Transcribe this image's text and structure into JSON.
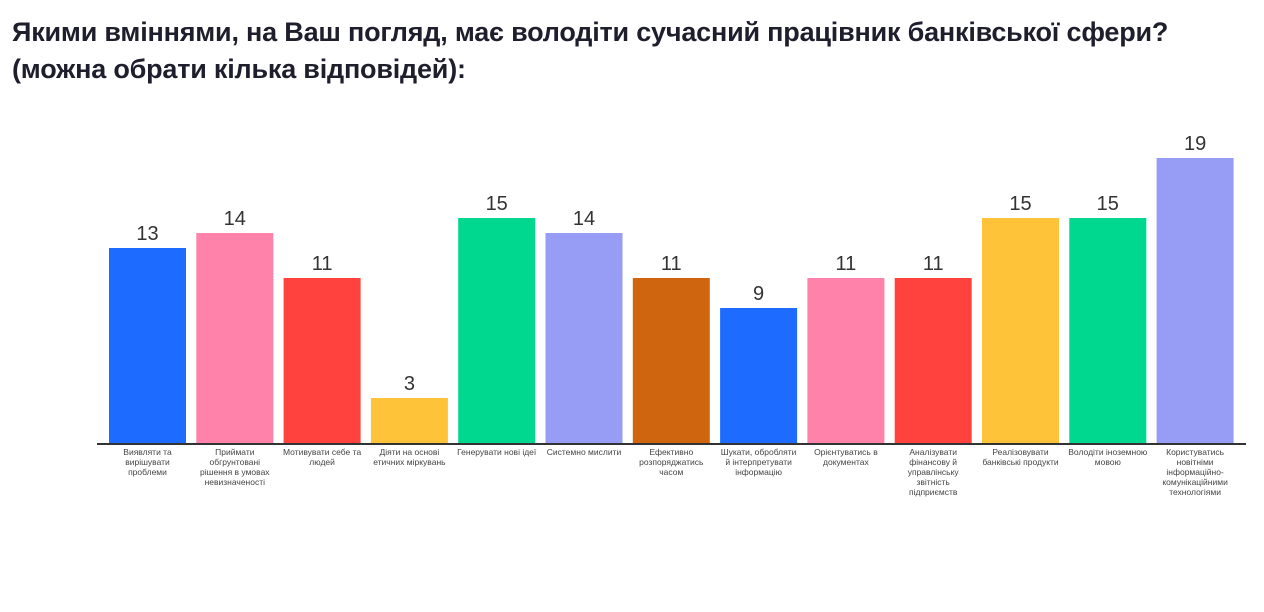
{
  "title": "Якими вміннями, на Ваш погляд, має володіти сучасний працівник банківської сфери? (можна обрати кілька відповідей):",
  "chart_data": {
    "type": "bar",
    "title": "Якими вміннями, на Ваш погляд, має володіти сучасний працівник банківської сфери? (можна обрати кілька відповідей):",
    "xlabel": "",
    "ylabel": "",
    "ylim": [
      0,
      19
    ],
    "grid": false,
    "legend": "none",
    "categories": [
      "Виявляти та вирішувати проблеми",
      "Приймати обгрунтовані рішення в умовах невизначеності",
      "Мотивувати себе та людей",
      "Діяти на основі етичних міркувань",
      "Генерувати нові ідеї",
      "Системно мислити",
      "Ефективно розпоряджатись часом",
      "Шукати, обробляти й інтерпретувати інформацію",
      "Орієнтуватись в документах",
      "Аналізувати фінансову й управлінську звітність підприємств",
      "Реалізовувати банківські продукти",
      "Володіти іноземною мовою",
      "Користуватись новітніми інформаційно-комунікаційними технологіями"
    ],
    "values": [
      13,
      14,
      11,
      3,
      15,
      14,
      11,
      9,
      11,
      11,
      15,
      15,
      19
    ],
    "colors": [
      "#1e6bff",
      "#ff82ab",
      "#ff423e",
      "#ffc33a",
      "#00d88f",
      "#979cf5",
      "#cf650e",
      "#1e6bff",
      "#ff82ab",
      "#ff423e",
      "#ffc33a",
      "#00d88f",
      "#979cf5"
    ],
    "axis_color": "#333333"
  }
}
